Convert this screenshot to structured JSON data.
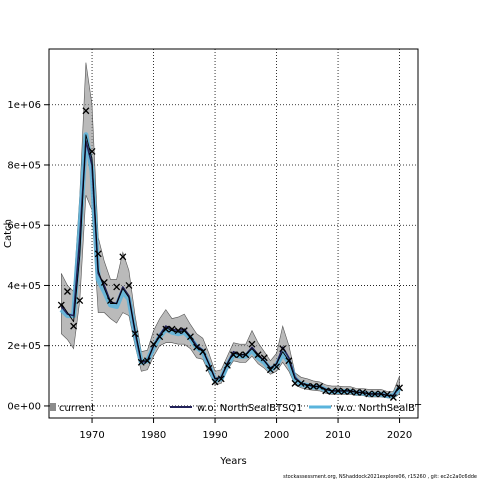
{
  "chart_data": {
    "type": "line",
    "title": "",
    "xlabel": "Years",
    "ylabel": "Catch",
    "xlim": [
      1963,
      2023
    ],
    "ylim": [
      -40000,
      1185000
    ],
    "xticks": [
      1970,
      1980,
      1990,
      2000,
      2010,
      2020
    ],
    "yticks": [
      0,
      200000,
      400000,
      600000,
      800000,
      1000000
    ],
    "ytick_labels": [
      "0e+00",
      "2e+05",
      "4e+05",
      "6e+05",
      "8e+05",
      "1e+06"
    ],
    "grid": true,
    "legend_position": "bottom",
    "legend": [
      {
        "label": "current",
        "style": "band-dark",
        "color": "#000000"
      },
      {
        "label": "w.o. NorthSealBTSQ1",
        "style": "line",
        "color": "#22225a"
      },
      {
        "label": "w.o. NorthSealBT",
        "style": "line",
        "color": "#5ab4dc"
      }
    ],
    "years": [
      1965,
      1966,
      1967,
      1968,
      1969,
      1970,
      1971,
      1972,
      1973,
      1974,
      1975,
      1976,
      1977,
      1978,
      1979,
      1980,
      1981,
      1982,
      1983,
      1984,
      1985,
      1986,
      1987,
      1988,
      1989,
      1990,
      1991,
      1992,
      1993,
      1994,
      1995,
      1996,
      1997,
      1998,
      1999,
      2000,
      2001,
      2002,
      2003,
      2004,
      2005,
      2006,
      2007,
      2008,
      2009,
      2010,
      2011,
      2012,
      2013,
      2014,
      2015,
      2016,
      2017,
      2018,
      2019,
      2020
    ],
    "series": [
      {
        "name": "current",
        "color": "#000000",
        "values": [
          340000,
          310000,
          280000,
          500000,
          900000,
          820000,
          450000,
          390000,
          340000,
          340000,
          390000,
          360000,
          250000,
          150000,
          150000,
          200000,
          230000,
          260000,
          250000,
          245000,
          250000,
          225000,
          195000,
          185000,
          140000,
          90000,
          95000,
          140000,
          175000,
          170000,
          170000,
          190000,
          165000,
          150000,
          125000,
          140000,
          180000,
          150000,
          90000,
          75000,
          70000,
          65000,
          65000,
          55000,
          50000,
          50000,
          50000,
          50000,
          45000,
          45000,
          40000,
          40000,
          40000,
          35000,
          35000,
          70000
        ],
        "lower": [
          240000,
          220000,
          190000,
          350000,
          700000,
          650000,
          310000,
          310000,
          290000,
          275000,
          310000,
          300000,
          200000,
          115000,
          120000,
          165000,
          200000,
          210000,
          210000,
          205000,
          205000,
          190000,
          160000,
          155000,
          110000,
          70000,
          75000,
          120000,
          150000,
          145000,
          145000,
          165000,
          140000,
          125000,
          105000,
          115000,
          145000,
          115000,
          70000,
          60000,
          55000,
          52000,
          50000,
          42000,
          38000,
          38000,
          38000,
          38000,
          35000,
          35000,
          30000,
          30000,
          30000,
          27000,
          25000,
          40000
        ],
        "upper": [
          440000,
          400000,
          380000,
          700000,
          1140000,
          1000000,
          560000,
          480000,
          420000,
          420000,
          510000,
          450000,
          300000,
          180000,
          185000,
          250000,
          290000,
          320000,
          290000,
          295000,
          305000,
          270000,
          240000,
          225000,
          175000,
          115000,
          120000,
          165000,
          210000,
          205000,
          205000,
          250000,
          210000,
          180000,
          150000,
          175000,
          265000,
          200000,
          110000,
          95000,
          90000,
          83000,
          80000,
          70000,
          66000,
          66000,
          64000,
          64000,
          58000,
          58000,
          55000,
          55000,
          55000,
          48000,
          48000,
          100000
        ]
      },
      {
        "name": "w.o. NorthSealBTSQ1",
        "color": "#22225a",
        "values": [
          330000,
          305000,
          300000,
          560000,
          880000,
          800000,
          440000,
          400000,
          345000,
          340000,
          395000,
          365000,
          245000,
          145000,
          150000,
          200000,
          235000,
          265000,
          255000,
          250000,
          255000,
          230000,
          200000,
          185000,
          140000,
          90000,
          95000,
          140000,
          180000,
          170000,
          170000,
          195000,
          170000,
          150000,
          125000,
          140000,
          195000,
          160000,
          95000,
          75000,
          70000,
          65000,
          65000,
          55000,
          50000,
          50000,
          50000,
          50000,
          45000,
          45000,
          40000,
          40000,
          40000,
          35000,
          35000,
          65000
        ]
      },
      {
        "name": "w.o. NorthSealBT",
        "color": "#5ab4dc",
        "values": [
          320000,
          300000,
          300000,
          580000,
          900000,
          780000,
          420000,
          380000,
          335000,
          330000,
          380000,
          355000,
          240000,
          145000,
          150000,
          195000,
          230000,
          255000,
          245000,
          240000,
          245000,
          225000,
          195000,
          180000,
          135000,
          85000,
          90000,
          135000,
          170000,
          165000,
          165000,
          185000,
          160000,
          145000,
          120000,
          135000,
          175000,
          145000,
          90000,
          72000,
          68000,
          63000,
          63000,
          53000,
          48000,
          48000,
          48000,
          48000,
          43000,
          43000,
          39000,
          39000,
          39000,
          34000,
          34000,
          60000
        ]
      },
      {
        "name": "observed",
        "marker": "x",
        "x": [
          1965,
          1966,
          1967,
          1968,
          1969,
          1970,
          1971,
          1972,
          1973,
          1974,
          1975,
          1976,
          1977,
          1978,
          1979,
          1980,
          1981,
          1982,
          1983,
          1984,
          1985,
          1986,
          1987,
          1988,
          1989,
          1990,
          1991,
          1992,
          1993,
          1994,
          1995,
          1996,
          1997,
          1998,
          1999,
          2000,
          2001,
          2002,
          2003,
          2004,
          2005,
          2006,
          2007,
          2008,
          2009,
          2010,
          2011,
          2012,
          2013,
          2014,
          2015,
          2016,
          2017,
          2018,
          2019,
          2020
        ],
        "y": [
          335000,
          380000,
          265000,
          350000,
          980000,
          845000,
          505000,
          410000,
          350000,
          395000,
          495000,
          400000,
          240000,
          145000,
          150000,
          205000,
          230000,
          255000,
          255000,
          250000,
          250000,
          230000,
          195000,
          180000,
          125000,
          80000,
          90000,
          135000,
          170000,
          170000,
          170000,
          205000,
          170000,
          160000,
          120000,
          130000,
          190000,
          150000,
          75000,
          75000,
          65000,
          65000,
          65000,
          50000,
          48000,
          50000,
          48000,
          48000,
          45000,
          45000,
          40000,
          40000,
          40000,
          38000,
          28000,
          60000
        ]
      }
    ]
  },
  "footer_text": "stockassessment.org, NShaddock2021explore06, r15260 , git: ec2c2a0c6dde"
}
